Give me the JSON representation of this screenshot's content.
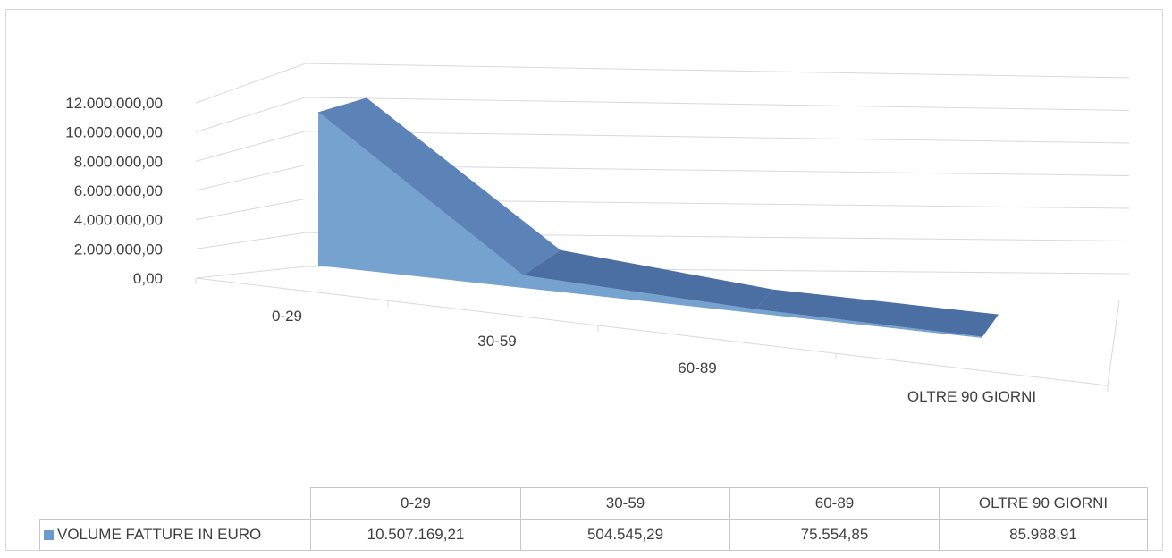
{
  "colors": {
    "series_front": "#76a2cf",
    "series_top": "#4b6fa3",
    "series_top_highlight": "#5c83b8",
    "legend_key": "#6a9bd0",
    "grid": "#d9d9d9"
  },
  "chart_data": {
    "type": "area",
    "three_d": true,
    "categories": [
      "0-29",
      "30-59",
      "60-89",
      "OLTRE 90 GIORNI"
    ],
    "series": [
      {
        "name": "VOLUME FATTURE IN EURO",
        "values": [
          10507169.21,
          504545.29,
          75554.85,
          85988.91
        ]
      }
    ],
    "y_ticks": [
      "0,00",
      "2.000.000,00",
      "4.000.000,00",
      "6.000.000,00",
      "8.000.000,00",
      "10.000.000,00",
      "12.000.000,00"
    ],
    "ylim": [
      0,
      12000000
    ],
    "grid": true,
    "legend": "data table",
    "data_table": {
      "headers": [
        "0-29",
        "30-59",
        "60-89",
        "OLTRE 90 GIORNI"
      ],
      "row_label": "VOLUME FATTURE IN EURO",
      "row_values": [
        "10.507.169,21",
        "504.545,29",
        "75.554,85",
        "85.988,91"
      ]
    }
  }
}
